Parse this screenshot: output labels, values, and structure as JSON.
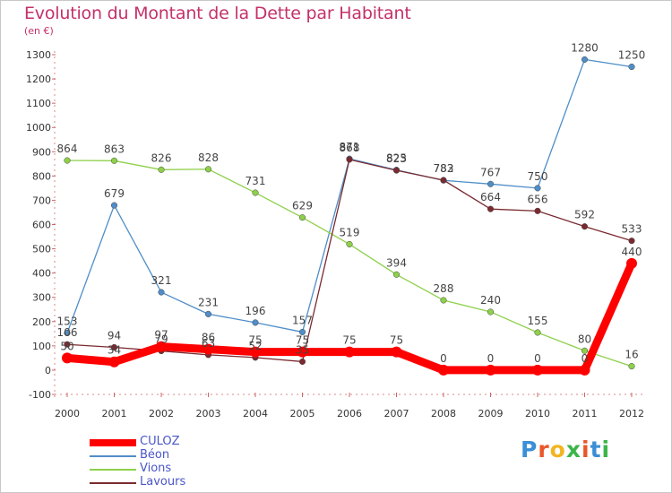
{
  "title": "Evolution du Montant de la Dette par Habitant",
  "subtitle": "(en €)",
  "logo": {
    "text": "Proxiti",
    "letter_colors": [
      "#3b8fd6",
      "#e8572a",
      "#f2b522",
      "#3bb54a",
      "#e8572a",
      "#3b8fd6",
      "#3bb54a"
    ]
  },
  "chart_data": {
    "type": "line",
    "title": "Evolution du Montant de la Dette par Habitant",
    "subtitle": "(en €)",
    "x": [
      "2000",
      "2001",
      "2002",
      "2003",
      "2004",
      "2005",
      "2006",
      "2007",
      "2008",
      "2009",
      "2010",
      "2011",
      "2012"
    ],
    "ylim": [
      -100,
      1300
    ],
    "yticks": [
      -100,
      0,
      100,
      200,
      300,
      400,
      500,
      600,
      700,
      800,
      900,
      1000,
      1100,
      1200,
      1300
    ],
    "grid": false,
    "legend_position": "bottom-left",
    "series": [
      {
        "name": "CULOZ",
        "color": "#ff0000",
        "emphasis": true,
        "values": [
          50,
          34,
          97,
          86,
          75,
          75,
          75,
          75,
          0,
          0,
          0,
          0,
          440
        ],
        "labels": [
          "50",
          "34",
          "97",
          "86",
          "75",
          "75",
          "75",
          "75",
          "0",
          "0",
          "0",
          "0",
          "440"
        ]
      },
      {
        "name": "Béon",
        "color": "#4f8ec8",
        "values": [
          153,
          679,
          321,
          231,
          196,
          157,
          871,
          825,
          782,
          767,
          750,
          1280,
          1250
        ],
        "labels": [
          "153",
          "679",
          "321",
          "231",
          "196",
          "157",
          "871",
          "825",
          "782",
          "767",
          "750",
          "1280",
          "1250"
        ]
      },
      {
        "name": "Vions",
        "color": "#8ed04a",
        "values": [
          864,
          863,
          826,
          828,
          731,
          629,
          519,
          394,
          288,
          240,
          155,
          80,
          16
        ],
        "labels": [
          "864",
          "863",
          "826",
          "828",
          "731",
          "629",
          "519",
          "394",
          "288",
          "240",
          "155",
          "80",
          "16"
        ]
      },
      {
        "name": "Lavours",
        "color": "#7a2a30",
        "values": [
          106,
          94,
          79,
          63,
          52,
          35,
          868,
          823,
          783,
          664,
          656,
          592,
          533
        ],
        "labels": [
          "106",
          "94",
          "79",
          "63",
          "52",
          "35",
          "868",
          "823",
          "783",
          "664",
          "656",
          "592",
          "533"
        ]
      }
    ]
  }
}
